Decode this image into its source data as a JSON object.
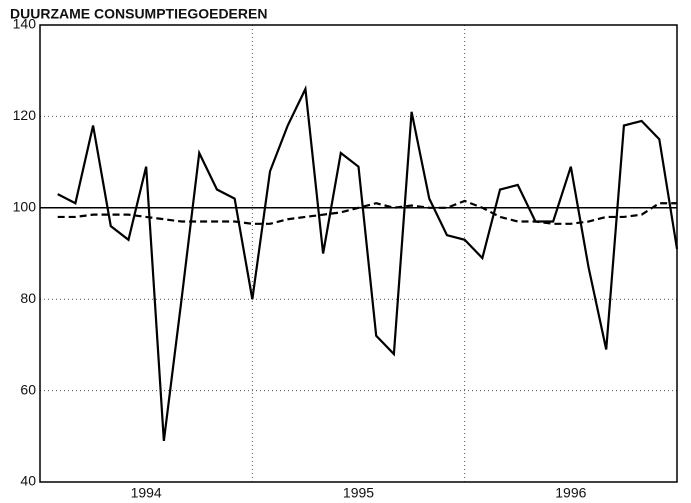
{
  "chart_data": {
    "type": "line",
    "title": "DUURZAME CONSUMPTIEGOEDEREN",
    "x": [
      1,
      2,
      3,
      4,
      5,
      6,
      7,
      8,
      9,
      10,
      11,
      12,
      13,
      14,
      15,
      16,
      17,
      18,
      19,
      20,
      21,
      22,
      23,
      24,
      25,
      26,
      27,
      28,
      29,
      30,
      31,
      32,
      33,
      34,
      35,
      36
    ],
    "xlim": [
      0,
      36
    ],
    "xticks": [
      {
        "value": 6,
        "label": "1994"
      },
      {
        "value": 18,
        "label": "1995"
      },
      {
        "value": 30,
        "label": "1996"
      }
    ],
    "xgrid": [
      12,
      24
    ],
    "ylim": [
      40,
      140
    ],
    "yticks": [
      40,
      60,
      80,
      100,
      120,
      140
    ],
    "grid": true,
    "reference_line": 100,
    "series": [
      {
        "color": "#000000",
        "dash": false,
        "values": [
          103,
          101,
          118,
          96,
          93,
          109,
          49,
          80,
          112,
          104,
          102,
          80,
          108,
          118,
          126,
          90,
          112,
          109,
          72,
          68,
          121,
          102,
          94,
          93,
          89,
          104,
          105,
          97,
          97,
          109,
          87,
          69,
          118,
          119,
          115,
          91
        ]
      },
      {
        "color": "#000000",
        "dash": true,
        "values": [
          98,
          98,
          98.5,
          98.5,
          98.5,
          98,
          97.5,
          97,
          97,
          97,
          97,
          96.5,
          96.5,
          97.5,
          98,
          98.5,
          99,
          100,
          101,
          100,
          100.5,
          100,
          100,
          101.5,
          100,
          98,
          97,
          97,
          96.5,
          96.5,
          97,
          98,
          98,
          98.5,
          101,
          101
        ]
      }
    ]
  }
}
